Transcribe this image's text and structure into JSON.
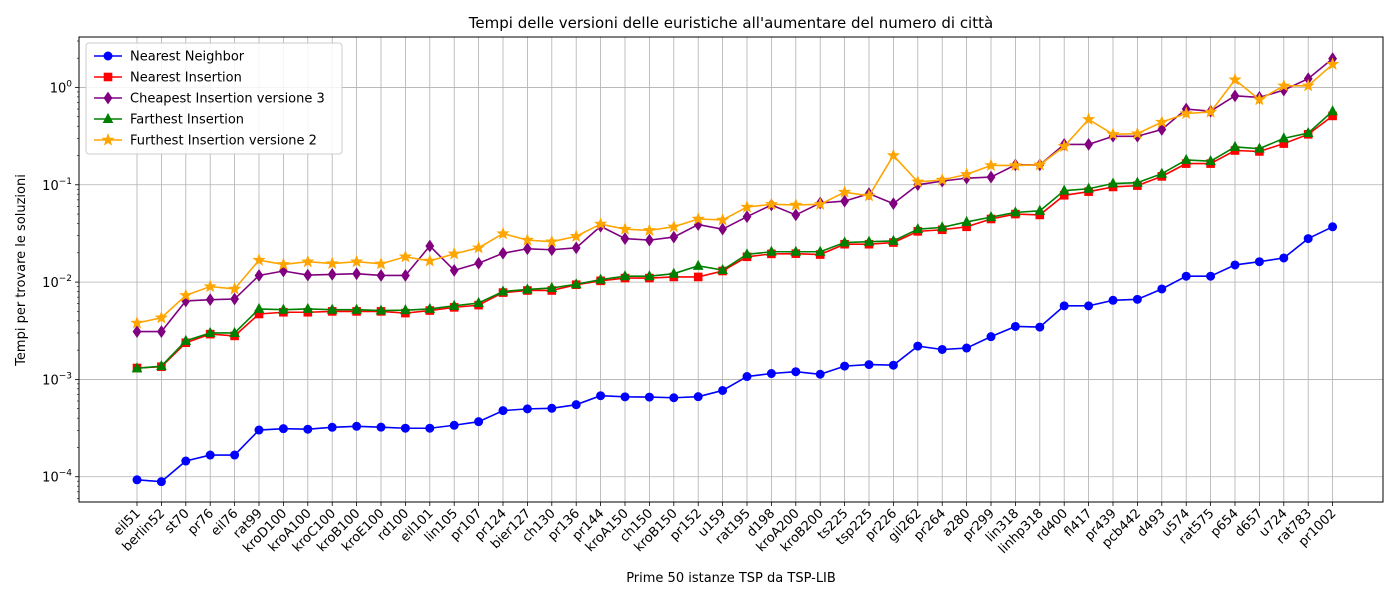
{
  "chart_data": {
    "type": "line",
    "title": "Tempi delle versioni delle euristiche all'aumentare del numero di città",
    "xlabel": "Prime 50 istanze TSP da TSP-LIB",
    "ylabel": "Tempi per trovare le soluzioni",
    "yscale": "log",
    "ylim": [
      5.5e-05,
      3.3
    ],
    "yticks": [
      {
        "value": 0.0001,
        "base": "10",
        "exp": "−4"
      },
      {
        "value": 0.001,
        "base": "10",
        "exp": "−3"
      },
      {
        "value": 0.01,
        "base": "10",
        "exp": "−2"
      },
      {
        "value": 0.1,
        "base": "10",
        "exp": "−1"
      },
      {
        "value": 1,
        "base": "10",
        "exp": "0"
      }
    ],
    "grid": true,
    "legend_position": "top-left",
    "categories": [
      "eil51",
      "berlin52",
      "st70",
      "pr76",
      "eil76",
      "rat99",
      "kroD100",
      "kroA100",
      "kroC100",
      "kroB100",
      "kroE100",
      "rd100",
      "eil101",
      "lin105",
      "pr107",
      "pr124",
      "bier127",
      "ch130",
      "pr136",
      "pr144",
      "kroA150",
      "ch150",
      "kroB150",
      "pr152",
      "u159",
      "rat195",
      "d198",
      "kroA200",
      "kroB200",
      "ts225",
      "tsp225",
      "pr226",
      "gil262",
      "pr264",
      "a280",
      "pr299",
      "lin318",
      "linhp318",
      "rd400",
      "fl417",
      "pr439",
      "pcb442",
      "d493",
      "u574",
      "rat575",
      "p654",
      "d657",
      "u724",
      "rat783",
      "pr1002"
    ],
    "series": [
      {
        "name": "Nearest Neighbor",
        "color": "#0000ff",
        "marker": "circle",
        "values": [
          9.3e-05,
          8.9e-05,
          0.000145,
          0.000167,
          0.000167,
          0.000302,
          0.000312,
          0.000308,
          0.000322,
          0.00033,
          0.000323,
          0.000315,
          0.000315,
          0.000338,
          0.000368,
          0.000478,
          0.000498,
          0.000505,
          0.00055,
          0.00068,
          0.000662,
          0.000658,
          0.000648,
          0.000665,
          0.00077,
          0.00107,
          0.00115,
          0.0012,
          0.00113,
          0.00137,
          0.00142,
          0.0014,
          0.0022,
          0.00203,
          0.0021,
          0.00275,
          0.0035,
          0.00345,
          0.0057,
          0.0057,
          0.0065,
          0.00665,
          0.0085,
          0.0115,
          0.0115,
          0.015,
          0.0162,
          0.0177,
          0.028,
          0.037
        ]
      },
      {
        "name": "Nearest Insertion",
        "color": "#ff0000",
        "marker": "square",
        "values": [
          0.00131,
          0.00135,
          0.00238,
          0.00292,
          0.0028,
          0.0047,
          0.0049,
          0.0049,
          0.005,
          0.005,
          0.005,
          0.0048,
          0.0051,
          0.0055,
          0.0058,
          0.0078,
          0.0082,
          0.0082,
          0.0094,
          0.0103,
          0.011,
          0.011,
          0.0113,
          0.0113,
          0.013,
          0.0182,
          0.0195,
          0.0196,
          0.0192,
          0.0245,
          0.0245,
          0.0255,
          0.0332,
          0.0345,
          0.037,
          0.0445,
          0.05,
          0.049,
          0.078,
          0.085,
          0.095,
          0.098,
          0.122,
          0.165,
          0.165,
          0.225,
          0.22,
          0.265,
          0.33,
          0.51
        ]
      },
      {
        "name": "Cheapest Insertion versione 3",
        "color": "#800080",
        "marker": "diamond",
        "values": [
          0.0031,
          0.0031,
          0.0064,
          0.0066,
          0.0067,
          0.0117,
          0.013,
          0.0118,
          0.012,
          0.0122,
          0.0117,
          0.0117,
          0.0235,
          0.0132,
          0.0156,
          0.0198,
          0.022,
          0.0215,
          0.0225,
          0.0375,
          0.028,
          0.027,
          0.029,
          0.039,
          0.035,
          0.047,
          0.062,
          0.049,
          0.065,
          0.068,
          0.081,
          0.064,
          0.1,
          0.109,
          0.117,
          0.12,
          0.16,
          0.16,
          0.26,
          0.26,
          0.315,
          0.315,
          0.37,
          0.6,
          0.57,
          0.82,
          0.79,
          0.94,
          1.23,
          1.98
        ]
      },
      {
        "name": "Farthest Insertion",
        "color": "#008000",
        "marker": "triangle",
        "values": [
          0.0013,
          0.00137,
          0.00249,
          0.003,
          0.003,
          0.0053,
          0.0052,
          0.0053,
          0.0052,
          0.0052,
          0.0051,
          0.00515,
          0.0053,
          0.0057,
          0.0061,
          0.008,
          0.0084,
          0.0087,
          0.0095,
          0.0106,
          0.0115,
          0.0115,
          0.0122,
          0.0147,
          0.0133,
          0.0193,
          0.0205,
          0.0205,
          0.0205,
          0.0255,
          0.026,
          0.0265,
          0.035,
          0.0365,
          0.0415,
          0.0465,
          0.052,
          0.054,
          0.087,
          0.091,
          0.103,
          0.105,
          0.13,
          0.18,
          0.175,
          0.245,
          0.235,
          0.3,
          0.34,
          0.57
        ]
      },
      {
        "name": "Furthest Insertion versione 2",
        "color": "#ffa500",
        "marker": "star",
        "values": [
          0.0038,
          0.0043,
          0.0073,
          0.009,
          0.0085,
          0.0168,
          0.0152,
          0.0162,
          0.0155,
          0.0162,
          0.0154,
          0.0182,
          0.0165,
          0.0195,
          0.0225,
          0.0315,
          0.027,
          0.026,
          0.0295,
          0.0395,
          0.035,
          0.034,
          0.037,
          0.0445,
          0.0435,
          0.059,
          0.063,
          0.062,
          0.063,
          0.084,
          0.077,
          0.2,
          0.107,
          0.112,
          0.128,
          0.158,
          0.158,
          0.16,
          0.248,
          0.47,
          0.33,
          0.335,
          0.44,
          0.54,
          0.56,
          1.2,
          0.75,
          1.04,
          1.04,
          1.73
        ]
      }
    ]
  }
}
